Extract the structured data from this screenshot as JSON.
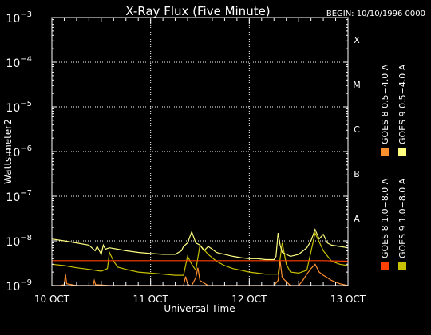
{
  "chart_data": {
    "type": "line",
    "title": "X-Ray Flux (Five Minute)",
    "begin_label": "BEGIN: 10/10/1996 0000",
    "xlabel": "Universal Time",
    "ylabel": "Watts meter2",
    "y_scale": "log",
    "ylim": [
      1e-09,
      0.001
    ],
    "xlim": [
      0,
      72
    ],
    "x_ticks": [
      {
        "x": 0,
        "label": "10 OCT"
      },
      {
        "x": 24,
        "label": "11 OCT"
      },
      {
        "x": 48,
        "label": "12 OCT"
      },
      {
        "x": 72,
        "label": "13 OCT"
      }
    ],
    "y_ticks": [
      {
        "exp": -3,
        "base": "10",
        "sup": "−3"
      },
      {
        "exp": -4,
        "base": "10",
        "sup": "−4"
      },
      {
        "exp": -5,
        "base": "10",
        "sup": "−5"
      },
      {
        "exp": -6,
        "base": "10",
        "sup": "−6"
      },
      {
        "exp": -7,
        "base": "10",
        "sup": "−7"
      },
      {
        "exp": -8,
        "base": "10",
        "sup": "−8"
      },
      {
        "exp": -9,
        "base": "10",
        "sup": "−9"
      }
    ],
    "flare_classes": [
      {
        "label": "X",
        "exp": -3.5
      },
      {
        "label": "M",
        "exp": -4.5
      },
      {
        "label": "C",
        "exp": -5.5
      },
      {
        "label": "B",
        "exp": -6.5
      },
      {
        "label": "A",
        "exp": -7.5
      }
    ],
    "grid": "dotted",
    "series": [
      {
        "name": "GOES 9 1.0−8.0 A",
        "color": "#c8c000",
        "x": [
          0,
          3,
          6,
          9,
          12,
          13.5,
          14,
          15,
          16,
          18,
          21,
          24,
          27,
          30,
          32,
          33,
          34,
          35,
          36,
          38,
          40,
          42,
          44,
          46,
          48,
          50,
          52,
          54,
          55,
          56,
          57,
          58,
          60,
          62,
          64,
          66,
          68,
          70,
          72
        ],
        "y": [
          3e-09,
          2.8e-09,
          2.5e-09,
          2.3e-09,
          2.1e-09,
          2.4e-09,
          5.5e-09,
          3.5e-09,
          2.6e-09,
          2.3e-09,
          2e-09,
          1.9e-09,
          1.8e-09,
          1.7e-09,
          1.7e-09,
          4.5e-09,
          3e-09,
          2.2e-09,
          8e-09,
          5e-09,
          3.5e-09,
          2.8e-09,
          2.4e-09,
          2.2e-09,
          2e-09,
          1.9e-09,
          1.8e-09,
          1.8e-09,
          1.8e-09,
          9e-09,
          3e-09,
          2e-09,
          1.9e-09,
          2.2e-09,
          1.5e-08,
          6e-09,
          3.5e-09,
          3e-09,
          2.8e-09
        ]
      },
      {
        "name": "GOES 9 0.5−4.0 A",
        "color": "#ffff80",
        "x": [
          0,
          3,
          6,
          9,
          10.5,
          11,
          12,
          12.5,
          13,
          14,
          16,
          18,
          21,
          24,
          27,
          30,
          31.5,
          32,
          33,
          34,
          35,
          36,
          37,
          38,
          39,
          40,
          41,
          42,
          44,
          46,
          48,
          50,
          52,
          54,
          54.5,
          55,
          55.5,
          56,
          58,
          60,
          62,
          63,
          64,
          65,
          66,
          67,
          68,
          70,
          72
        ],
        "y": [
          1.1e-08,
          1e-08,
          9e-09,
          8e-09,
          6e-09,
          7.5e-09,
          5e-09,
          8e-09,
          6.5e-09,
          7e-09,
          6.5e-09,
          6e-09,
          5.5e-09,
          5.2e-09,
          5e-09,
          5e-09,
          6e-09,
          7.5e-09,
          9e-09,
          1.6e-08,
          9e-09,
          8e-09,
          6e-09,
          7.5e-09,
          6.5e-09,
          5.5e-09,
          5.2e-09,
          5e-09,
          4.5e-09,
          4.2e-09,
          4e-09,
          4e-09,
          3.8e-09,
          3.8e-09,
          4.5e-09,
          1.5e-08,
          8e-09,
          5.5e-09,
          4.5e-09,
          5e-09,
          7e-09,
          1e-08,
          1.8e-08,
          1.1e-08,
          1.4e-08,
          9e-09,
          8e-09,
          7.5e-09,
          7e-09
        ]
      },
      {
        "name": "GOES 8 1.0−8.0 A",
        "color": "#ff4000",
        "x": [
          0,
          12,
          24,
          36,
          48,
          54,
          60,
          66,
          72
        ],
        "y": [
          3.6e-09,
          3.6e-09,
          3.6e-09,
          3.6e-09,
          3.6e-09,
          3.6e-09,
          3.6e-09,
          3.6e-09,
          3.5e-09
        ]
      },
      {
        "name": "GOES 8 0.5−4.0 A",
        "color": "#ff9030",
        "x": [
          0,
          2,
          3,
          3.3,
          3.6,
          6,
          9,
          10,
          10.3,
          10.6,
          14,
          18,
          24,
          30,
          32,
          32.5,
          33,
          33.5,
          34,
          35,
          35.5,
          36,
          38,
          42,
          46,
          48,
          52,
          54,
          55,
          55.5,
          56,
          58,
          60,
          61,
          62,
          63,
          64,
          65,
          66,
          67,
          68,
          70,
          72
        ],
        "y": [
          1e-09,
          1e-09,
          1.05e-09,
          1.8e-09,
          1.1e-09,
          1e-09,
          1e-09,
          1e-09,
          1.3e-09,
          1.05e-09,
          1e-09,
          1e-09,
          1e-09,
          1e-09,
          1e-09,
          1.6e-09,
          1.1e-09,
          1e-09,
          1e-09,
          1.5e-09,
          2.5e-09,
          1.3e-09,
          1e-09,
          1e-09,
          1e-09,
          1e-09,
          1e-09,
          1e-09,
          1.3e-09,
          3.5e-09,
          1.5e-09,
          1e-09,
          1e-09,
          1.3e-09,
          1.8e-09,
          2.4e-09,
          3e-09,
          2e-09,
          1.7e-09,
          1.5e-09,
          1.3e-09,
          1.1e-09,
          1e-09
        ]
      }
    ],
    "legend": [
      {
        "label": "GOES 8 1.0−8.0 A",
        "color": "#ff4000"
      },
      {
        "label": "GOES 9 1.0−8.0 A",
        "color": "#c8c000"
      },
      {
        "label": "GOES 8 0.5−4.0 A",
        "color": "#ff9030"
      },
      {
        "label": "GOES 9 0.5−4.0 A",
        "color": "#ffff80"
      }
    ]
  }
}
